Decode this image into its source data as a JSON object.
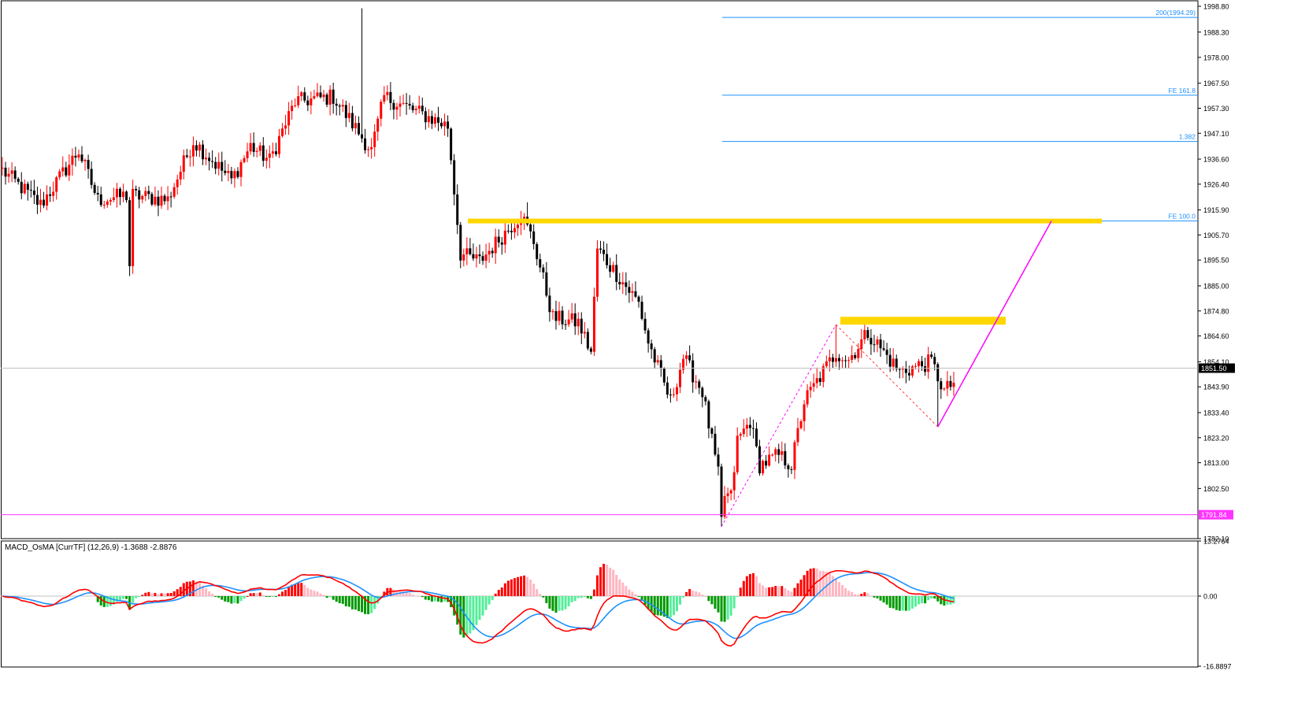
{
  "chart_data": [
    {
      "type": "candlestick",
      "name": "price-panel",
      "y_axis": {
        "ylim": [
          1782.1,
          1998.8
        ],
        "ticks": [
          "1998.80",
          "1988.30",
          "1978.00",
          "1967.50",
          "1957.30",
          "1947.10",
          "1936.60",
          "1926.40",
          "1915.90",
          "1905.70",
          "1895.50",
          "1885.00",
          "1874.80",
          "1864.60",
          "1854.10",
          "1843.90",
          "1833.40",
          "1823.20",
          "1813.00",
          "1802.50",
          "1782.10"
        ]
      },
      "current_price": {
        "label": "1851.50",
        "value": 1851.5
      },
      "support_line": {
        "label": "1791.84",
        "value": 1791.84,
        "color": "#ff33ff"
      },
      "fibo_levels": [
        {
          "label": "200(1994.29)",
          "value": 1994.29
        },
        {
          "label": "FE 161.8",
          "value": 1962.6
        },
        {
          "label": "1.382",
          "value": 1943.8
        },
        {
          "label": "FE 100.0",
          "value": 1911.4
        }
      ],
      "key_points": [
        {
          "value": 1998.0
        },
        {
          "value": 1889.0
        },
        {
          "value": 1919.0
        },
        {
          "value": 1787.0
        },
        {
          "value": 1869.2
        },
        {
          "value": 1827.6
        },
        {
          "value": 1911.4
        }
      ],
      "colors": {
        "bull": "#ff0000",
        "bear": "#000000",
        "zone": "#ffd700",
        "fibo": "#1e90ff",
        "projection": "#ff00ff"
      }
    },
    {
      "type": "histogram+lines",
      "name": "indicator-panel",
      "title": "MACD_OsMA [CurrTF] (12,26,9) -1.3688 -2.8876",
      "y_axis": {
        "ylim": [
          -16.8897,
          13.2764
        ],
        "ticks": [
          "13.2764",
          "0.00",
          "-16.8897"
        ]
      },
      "colors": {
        "pos_up": "#ff0000",
        "pos_down": "#ffb6c1",
        "neg_down": "#009900",
        "neg_up": "#55ee99",
        "macd": "#ff0000",
        "signal": "#1e90ff"
      }
    }
  ]
}
